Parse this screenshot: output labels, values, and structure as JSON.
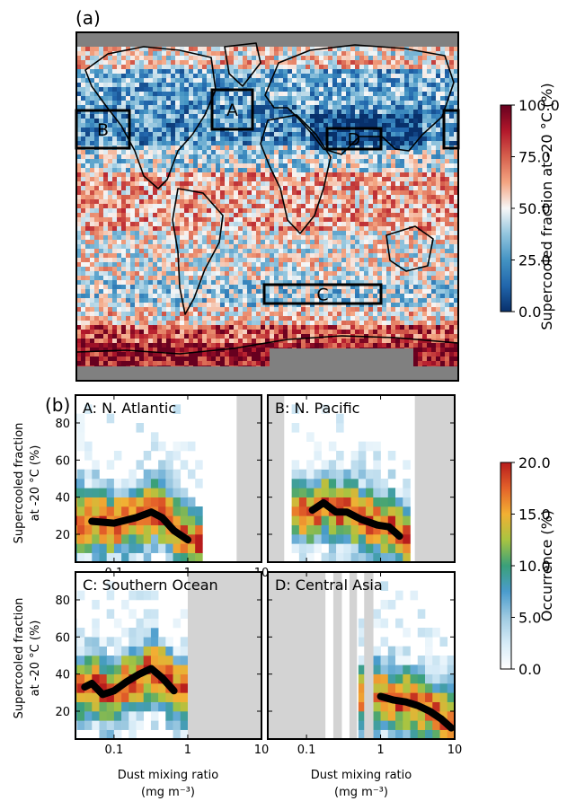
{
  "figure": {
    "panel_a_label": "(a)",
    "panel_b_label": "(b)",
    "map_colorbar": {
      "label": "Supercooled fraction at -20 °C (%)",
      "ticks": [
        "0.0",
        "25.0",
        "50.0",
        "75.0",
        "100.0"
      ],
      "colormap": [
        "#08306b",
        "#2166ac",
        "#4393c3",
        "#92c5de",
        "#f7f7f7",
        "#f4a582",
        "#d6604d",
        "#b2182b",
        "#67001f"
      ]
    },
    "occ_colorbar": {
      "label": "Occurrence (%)",
      "ticks": [
        "0.0",
        "5.0",
        "10.0",
        "15.0",
        "20.0"
      ],
      "colormap": [
        "#ffffff",
        "#d6ebf7",
        "#9ecae1",
        "#4a9ccd",
        "#3aa07a",
        "#a8c441",
        "#f2b033",
        "#e4622a",
        "#b71c1c"
      ]
    },
    "map_regions": [
      "A",
      "B",
      "C",
      "D"
    ],
    "ylabel_line1": "Supercooled fraction",
    "ylabel_line2": "at -20 °C (%)",
    "xlabel_line1": "Dust mixing ratio",
    "xlabel_line2": "(mg m⁻³)"
  },
  "chart_data": [
    {
      "type": "heatmap",
      "panel": "a",
      "description_axes": "global map longitude-latitude",
      "value_range": [
        0,
        100
      ],
      "colorbar_label": "Supercooled fraction at -20 °C (%)",
      "colorbar_ticks": [
        0,
        25,
        50,
        75,
        100
      ],
      "regions": [
        "A",
        "B",
        "C",
        "D"
      ]
    },
    {
      "type": "heatmap",
      "panel": "b",
      "title": "A: N. Atlantic",
      "xscale": "log",
      "xlim": [
        0.03,
        10
      ],
      "ylim": [
        5,
        95
      ],
      "xticks": [
        "0.1",
        "1",
        "10"
      ],
      "yticks": [
        "20",
        "40",
        "60",
        "80"
      ],
      "gray_x_ranges": [
        [
          4.6,
          10
        ]
      ],
      "mean_line": {
        "x": [
          0.05,
          0.1,
          0.2,
          0.32,
          0.45,
          0.65,
          1.0
        ],
        "y": [
          27,
          26,
          29,
          32,
          29,
          22,
          17
        ]
      }
    },
    {
      "type": "heatmap",
      "panel": "b",
      "title": "B: N. Pacific",
      "xscale": "log",
      "xlim": [
        0.03,
        10
      ],
      "ylim": [
        5,
        95
      ],
      "xticks": [],
      "yticks": [],
      "gray_x_ranges": [
        [
          0.03,
          0.05
        ],
        [
          2.9,
          10
        ]
      ],
      "mean_line": {
        "x": [
          0.12,
          0.17,
          0.25,
          0.35,
          0.55,
          0.9,
          1.3,
          1.8
        ],
        "y": [
          33,
          37,
          32,
          32,
          28,
          25,
          24,
          19
        ]
      }
    },
    {
      "type": "heatmap",
      "panel": "b",
      "title": "C: Southern Ocean",
      "xscale": "log",
      "xlim": [
        0.03,
        10
      ],
      "ylim": [
        5,
        95
      ],
      "xticks": [
        "0.1",
        "1",
        "10"
      ],
      "yticks": [
        "20",
        "40",
        "60",
        "80"
      ],
      "gray_x_ranges": [
        [
          1.0,
          10
        ]
      ],
      "mean_line": {
        "x": [
          0.04,
          0.05,
          0.07,
          0.1,
          0.15,
          0.22,
          0.32,
          0.45,
          0.65
        ],
        "y": [
          33,
          35,
          29,
          31,
          36,
          40,
          43,
          38,
          31
        ]
      }
    },
    {
      "type": "heatmap",
      "panel": "b",
      "title": "D: Central Asia",
      "xscale": "log",
      "xlim": [
        0.03,
        10
      ],
      "ylim": [
        5,
        95
      ],
      "xticks": [
        "0.1",
        "1",
        "10"
      ],
      "yticks": [],
      "gray_x_ranges": [
        [
          0.03,
          0.18
        ],
        [
          0.23,
          0.3
        ],
        [
          0.38,
          0.48
        ],
        [
          0.6,
          0.8
        ]
      ],
      "mean_line": {
        "x": [
          1.0,
          1.5,
          2.2,
          3.2,
          4.6,
          6.5,
          9.0
        ],
        "y": [
          28,
          26,
          25,
          23,
          20,
          16,
          11
        ]
      }
    }
  ]
}
